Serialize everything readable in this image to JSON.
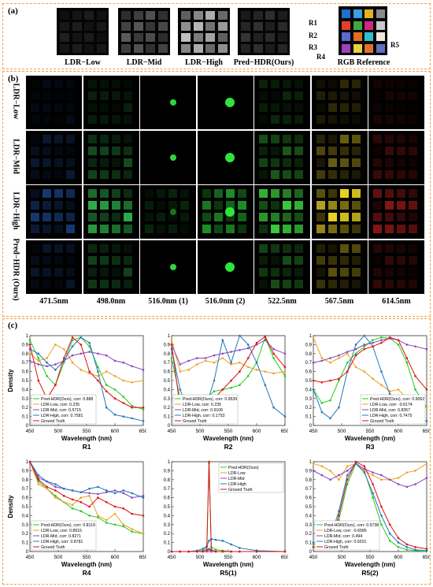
{
  "panel_a": {
    "label": "(a)",
    "captions": [
      "LDR−Low",
      "LDR−Mid",
      "LDR−High",
      "Pred−HDR(Ours)",
      "RGB Reference"
    ],
    "region_labels": [
      "R1",
      "R2",
      "R3",
      "R4",
      "R5"
    ],
    "rgb_colors": [
      "#1e6fd0",
      "#3aa0e0",
      "#e6b020",
      "#8a8a8a",
      "#e0402a",
      "#40a840",
      "#d02880",
      "#c8c8c8",
      "#5a6ad0",
      "#e07020",
      "#30c0d0",
      "#f0e8e0",
      "#a040c0",
      "#e8d040",
      "#e07030",
      "#6070c0"
    ]
  },
  "panel_b": {
    "label": "(b)",
    "rows": [
      "LDR−Low",
      "LDR−Mid",
      "LDR−High",
      "Pred−HDR (Ours)"
    ],
    "columns": [
      "471.5nm",
      "498.0nm",
      "516.0nm (1)",
      "516.0nm (2)",
      "522.5nm",
      "567.5nm",
      "614.5nm"
    ],
    "column_colors": [
      "#2a6bd6",
      "#30c050",
      "#30e040",
      "#30f040",
      "#40e040",
      "#e8d020",
      "#d02020"
    ]
  },
  "panel_c": {
    "label": "(c)"
  },
  "chart_data": [
    {
      "type": "line",
      "panel": "R1",
      "xlabel": "Wavelength (nm)",
      "ylabel": "Density",
      "xlim": [
        450,
        650
      ],
      "ylim": [
        0,
        1
      ],
      "xticks": [
        450,
        500,
        550,
        600,
        650
      ],
      "yticks": [
        0,
        0.1,
        0.2,
        0.3,
        0.4,
        0.5,
        0.6,
        0.7,
        0.8,
        0.9,
        1
      ],
      "legend": "bottom-left",
      "x": [
        450,
        465,
        480,
        495,
        510,
        525,
        540,
        555,
        570,
        585,
        600,
        615,
        630,
        650
      ],
      "series": [
        {
          "name": "Pred-HDR(Ours), corr: 0.888",
          "color": "#22cc22",
          "values": [
            0.95,
            0.75,
            0.55,
            0.45,
            0.7,
            0.95,
            0.98,
            0.88,
            0.65,
            0.45,
            0.4,
            0.32,
            0.22,
            0.18
          ]
        },
        {
          "name": "LDR-Low, corr: 0.235",
          "color": "#f0a020",
          "values": [
            0.8,
            0.72,
            0.75,
            0.9,
            0.85,
            0.7,
            0.62,
            0.58,
            0.55,
            0.6,
            0.55,
            0.5,
            0.48,
            0.5
          ]
        },
        {
          "name": "LDR-Mid, corr: 0.5715",
          "color": "#8844bb",
          "values": [
            0.72,
            0.68,
            0.66,
            0.68,
            0.72,
            0.78,
            0.8,
            0.82,
            0.8,
            0.78,
            0.72,
            0.7,
            0.66,
            0.62
          ]
        },
        {
          "name": "LDR-High, corr: 0.7581",
          "color": "#2277bb",
          "values": [
            0.85,
            0.8,
            0.7,
            0.62,
            0.72,
            0.88,
            0.98,
            0.92,
            0.6,
            0.2,
            0.12,
            0.1,
            0.08,
            0.05
          ]
        },
        {
          "name": "Ground Truth",
          "color": "#dd1111",
          "values": [
            0.9,
            0.5,
            0.3,
            0.45,
            0.75,
            0.98,
            0.9,
            0.6,
            0.5,
            0.38,
            0.3,
            0.25,
            0.2,
            0.2
          ]
        }
      ]
    },
    {
      "type": "line",
      "panel": "R2",
      "xlabel": "Wavelength (nm)",
      "ylabel": "",
      "xlim": [
        450,
        650
      ],
      "ylim": [
        0,
        1
      ],
      "xticks": [
        450,
        500,
        550,
        600,
        650
      ],
      "yticks": [
        0,
        0.1,
        0.2,
        0.3,
        0.4,
        0.5,
        0.6,
        0.7,
        0.8,
        0.9,
        1
      ],
      "legend": "bottom-left",
      "x": [
        450,
        465,
        480,
        495,
        510,
        525,
        540,
        555,
        570,
        585,
        600,
        615,
        630,
        650
      ],
      "series": [
        {
          "name": "Pred-HDR(Ours), corr: 0.9539",
          "color": "#22cc22",
          "values": [
            0.75,
            0.3,
            0.25,
            0.28,
            0.3,
            0.38,
            0.4,
            0.42,
            0.45,
            0.55,
            0.7,
            0.98,
            0.75,
            0.55
          ]
        },
        {
          "name": "LDR-Low, corr: 0.235",
          "color": "#f0a020",
          "values": [
            0.95,
            0.6,
            0.62,
            0.68,
            0.72,
            0.7,
            0.75,
            0.68,
            0.7,
            0.65,
            0.62,
            0.6,
            0.58,
            0.6
          ]
        },
        {
          "name": "LDR-Mid, corr: 0.9106",
          "color": "#8844bb",
          "values": [
            0.9,
            0.68,
            0.72,
            0.75,
            0.75,
            0.78,
            0.8,
            0.82,
            0.84,
            0.86,
            0.9,
            0.95,
            0.85,
            0.8
          ]
        },
        {
          "name": "LDR-High, corr: 0.1753",
          "color": "#2277bb",
          "values": [
            0.85,
            0.4,
            0.15,
            0.1,
            0.2,
            0.5,
            0.95,
            0.7,
            1.0,
            0.9,
            0.7,
            0.45,
            0.2,
            0.1
          ]
        },
        {
          "name": "Ground Truth",
          "color": "#dd1111",
          "values": [
            0.9,
            0.2,
            0.08,
            0.12,
            0.2,
            0.3,
            0.4,
            0.5,
            0.6,
            0.75,
            0.92,
            0.99,
            0.8,
            0.65
          ]
        }
      ]
    },
    {
      "type": "line",
      "panel": "R3",
      "xlabel": "Wavelength (nm)",
      "ylabel": "",
      "xlim": [
        450,
        650
      ],
      "ylim": [
        0,
        1
      ],
      "xticks": [
        450,
        500,
        550,
        600,
        650
      ],
      "yticks": [
        0,
        0.1,
        0.2,
        0.3,
        0.4,
        0.5,
        0.6,
        0.7,
        0.8,
        0.9,
        1
      ],
      "legend": "bottom-right",
      "x": [
        450,
        465,
        480,
        495,
        510,
        525,
        540,
        555,
        570,
        585,
        600,
        615,
        630,
        650
      ],
      "series": [
        {
          "name": "Pred-HDR(Ours), corr: 0.9062",
          "color": "#22cc22",
          "values": [
            0.4,
            0.25,
            0.28,
            0.5,
            0.7,
            0.8,
            0.88,
            0.95,
            0.98,
            0.97,
            0.9,
            0.7,
            0.4,
            0.2
          ]
        },
        {
          "name": "LDR-Low, corr: -0.6174",
          "color": "#f0a020",
          "values": [
            0.98,
            0.75,
            0.7,
            0.75,
            0.8,
            0.65,
            0.6,
            0.52,
            0.45,
            0.38,
            0.4,
            0.3,
            0.25,
            0.2
          ]
        },
        {
          "name": "LDR-Mid, corr: 0.8357",
          "color": "#8844bb",
          "values": [
            0.7,
            0.72,
            0.75,
            0.78,
            0.82,
            0.85,
            0.9,
            0.92,
            0.95,
            0.97,
            0.95,
            0.9,
            0.88,
            0.85
          ]
        },
        {
          "name": "LDR-High, corr: 0.7475",
          "color": "#2277bb",
          "values": [
            0.4,
            0.15,
            0.08,
            0.2,
            0.6,
            0.9,
            1.0,
            0.88,
            0.6,
            0.35,
            0.2,
            0.12,
            0.08,
            0.05
          ]
        },
        {
          "name": "Ground Truth",
          "color": "#dd1111",
          "values": [
            0.5,
            0.48,
            0.5,
            0.52,
            0.6,
            0.78,
            0.85,
            0.88,
            0.92,
            0.98,
            0.95,
            0.75,
            0.55,
            0.4
          ]
        }
      ]
    },
    {
      "type": "line",
      "panel": "R4",
      "xlabel": "Wavelength (nm)",
      "ylabel": "Density",
      "xlim": [
        450,
        650
      ],
      "ylim": [
        0,
        1
      ],
      "xticks": [
        450,
        500,
        550,
        600,
        650
      ],
      "yticks": [
        0,
        0.1,
        0.2,
        0.3,
        0.4,
        0.5,
        0.6,
        0.7,
        0.8,
        0.9,
        1
      ],
      "legend": "bottom-left",
      "x": [
        450,
        465,
        480,
        495,
        510,
        525,
        540,
        555,
        570,
        585,
        600,
        615,
        630,
        650
      ],
      "series": [
        {
          "name": "Pred-HDR(Ours), corr: 0.8119",
          "color": "#22cc22",
          "values": [
            1.0,
            0.78,
            0.7,
            0.62,
            0.55,
            0.48,
            0.45,
            0.4,
            0.38,
            0.32,
            0.3,
            0.28,
            0.22,
            0.2
          ]
        },
        {
          "name": "LDR-Low, corr: 0.8915",
          "color": "#f0a020",
          "values": [
            1.0,
            0.75,
            0.7,
            0.6,
            0.55,
            0.52,
            0.6,
            0.62,
            0.4,
            0.35,
            0.42,
            0.3,
            0.25,
            0.2
          ]
        },
        {
          "name": "LDR-Mid, corr: 0.8271",
          "color": "#8844bb",
          "values": [
            1.0,
            0.82,
            0.78,
            0.72,
            0.7,
            0.68,
            0.66,
            0.65,
            0.64,
            0.66,
            0.68,
            0.65,
            0.6,
            0.62
          ]
        },
        {
          "name": "LDR-High, corr: 0.8781",
          "color": "#2277bb",
          "values": [
            1.0,
            0.85,
            0.78,
            0.75,
            0.7,
            0.68,
            0.66,
            0.7,
            0.72,
            0.68,
            0.65,
            0.68,
            0.65,
            0.6
          ]
        },
        {
          "name": "Ground Truth",
          "color": "#dd1111",
          "values": [
            1.0,
            0.8,
            0.72,
            0.68,
            0.62,
            0.58,
            0.55,
            0.5,
            0.6,
            0.55,
            0.5,
            0.48,
            0.42,
            0.4
          ]
        }
      ]
    },
    {
      "type": "line",
      "panel": "R5(1)",
      "xlabel": "Wavelength (nm)",
      "ylabel": "",
      "xlim": [
        450,
        650
      ],
      "ylim": [
        0,
        1
      ],
      "xticks": [
        450,
        500,
        550,
        600,
        650
      ],
      "yticks": [
        0,
        0.1,
        0.2,
        0.3,
        0.4,
        0.5,
        0.6,
        0.7,
        0.8,
        0.9,
        1
      ],
      "legend": "top-right",
      "x": [
        450,
        465,
        480,
        495,
        505,
        512,
        516,
        520,
        528,
        540,
        555,
        570,
        600,
        650
      ],
      "series": [
        {
          "name": "Pred-HDR(Ours)",
          "color": "#22cc22",
          "values": [
            0.0,
            0.0,
            0.0,
            0.0,
            0.01,
            0.05,
            0.98,
            0.05,
            0.02,
            0.01,
            0.0,
            0.0,
            0.0,
            0.0
          ]
        },
        {
          "name": "LDR-Low",
          "color": "#f0a020",
          "values": [
            0.0,
            0.0,
            0.0,
            0.0,
            0.0,
            0.0,
            0.02,
            0.0,
            0.0,
            0.0,
            0.0,
            0.0,
            0.0,
            0.0
          ]
        },
        {
          "name": "LDR-Mid",
          "color": "#8844bb",
          "values": [
            0.0,
            0.0,
            0.0,
            0.0,
            0.0,
            0.0,
            0.03,
            0.0,
            0.0,
            0.0,
            0.0,
            0.0,
            0.0,
            0.0
          ]
        },
        {
          "name": "LDR-High",
          "color": "#2277bb",
          "values": [
            0.0,
            0.0,
            0.0,
            0.01,
            0.03,
            0.06,
            0.12,
            0.14,
            0.13,
            0.12,
            0.08,
            0.04,
            0.01,
            0.0
          ]
        },
        {
          "name": "Ground Truth",
          "color": "#dd1111",
          "values": [
            0.0,
            0.0,
            0.0,
            0.0,
            0.0,
            0.02,
            1.0,
            0.02,
            0.0,
            0.0,
            0.0,
            0.0,
            0.0,
            0.0
          ]
        }
      ]
    },
    {
      "type": "line",
      "panel": "R5(2)",
      "xlabel": "Wavelength (nm)",
      "ylabel": "",
      "xlim": [
        450,
        650
      ],
      "ylim": [
        0,
        1
      ],
      "xticks": [
        450,
        500,
        550,
        600,
        650
      ],
      "yticks": [
        0,
        0.1,
        0.2,
        0.3,
        0.4,
        0.5,
        0.6,
        0.7,
        0.8,
        0.9,
        1
      ],
      "legend": "bottom-left",
      "x": [
        450,
        465,
        480,
        495,
        510,
        525,
        540,
        555,
        570,
        585,
        600,
        615,
        630,
        650
      ],
      "series": [
        {
          "name": "Pred-HDR(Ours), corr: 0.9738",
          "color": "#22cc22",
          "values": [
            0.08,
            0.05,
            0.1,
            0.35,
            0.75,
            0.98,
            0.9,
            0.6,
            0.3,
            0.12,
            0.05,
            0.02,
            0.01,
            0.0
          ]
        },
        {
          "name": "LDR-Low, corr: -0.6585",
          "color": "#f0a020",
          "values": [
            0.98,
            0.95,
            0.9,
            0.8,
            0.95,
            0.98,
            0.9,
            0.85,
            0.8,
            0.8,
            0.82,
            0.88,
            0.9,
            0.98
          ]
        },
        {
          "name": "LDR-Mid, corr: 0.494",
          "color": "#8844bb",
          "values": [
            0.9,
            0.85,
            0.8,
            0.85,
            0.9,
            0.98,
            0.92,
            0.88,
            0.85,
            0.8,
            0.75,
            0.72,
            0.75,
            0.82
          ]
        },
        {
          "name": "LDR-High, corr: 0.9201",
          "color": "#2277bb",
          "values": [
            0.1,
            0.08,
            0.15,
            0.45,
            0.85,
            0.98,
            0.88,
            0.65,
            0.4,
            0.2,
            0.1,
            0.05,
            0.02,
            0.01
          ]
        },
        {
          "name": "Ground Truth",
          "color": "#dd1111",
          "values": [
            0.05,
            0.05,
            0.1,
            0.4,
            0.8,
            1.0,
            0.95,
            0.75,
            0.5,
            0.3,
            0.15,
            0.08,
            0.05,
            0.03
          ]
        }
      ]
    }
  ],
  "chart_titles": [
    "R1",
    "R2",
    "R3",
    "R4",
    "R5(1)",
    "R5(2)"
  ]
}
